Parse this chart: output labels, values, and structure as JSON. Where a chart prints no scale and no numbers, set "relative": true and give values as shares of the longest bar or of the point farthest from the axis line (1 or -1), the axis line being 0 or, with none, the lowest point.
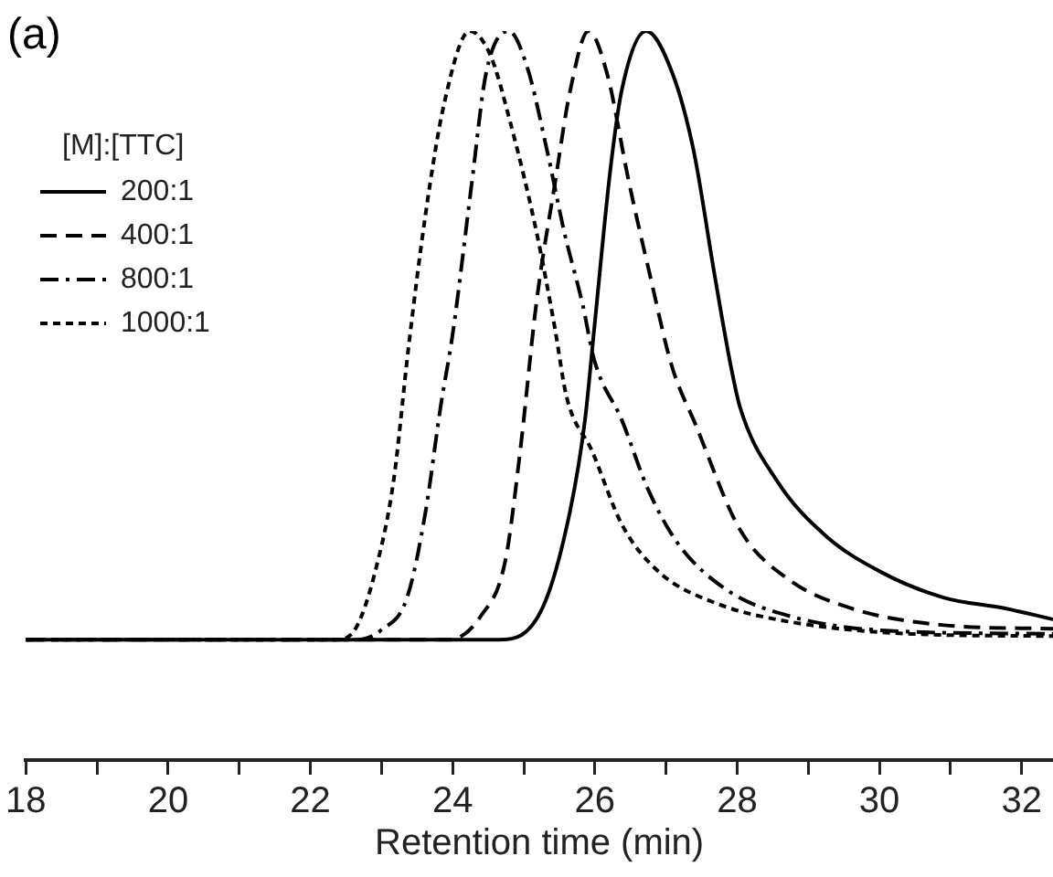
{
  "chart_data": {
    "type": "line",
    "relative": true,
    "xlabel": "Retention time (min)",
    "legend_title": "[M]:[TTC]",
    "legend": "top left",
    "grid": false,
    "marker": "none",
    "annotations": [
      "(a)"
    ],
    "xlim": [
      18,
      32.44
    ],
    "xticks": [
      18,
      {
        "value": 19,
        "label": null
      },
      20,
      {
        "value": 21,
        "label": null
      },
      22,
      {
        "value": 23,
        "label": null
      },
      24,
      {
        "value": 25,
        "label": null
      },
      26,
      {
        "value": 27,
        "label": null
      },
      28,
      {
        "value": 29,
        "label": null
      },
      30,
      {
        "value": 31,
        "label": null
      },
      32
    ],
    "series": [
      {
        "name": "200:1",
        "color": "#000000",
        "line_style": "solid",
        "x": [
          18,
          20,
          22,
          24,
          24.66,
          25.26,
          25.65,
          25.86,
          25.99,
          26.22,
          26.38,
          26.72,
          27.09,
          27.39,
          27.68,
          27.91,
          28.04,
          28.56,
          29.24,
          30.02,
          30.9,
          31.77,
          32.44
        ],
        "values": [
          0.165,
          0.165,
          0.165,
          0.165,
          0.165,
          0.208,
          0.341,
          0.466,
          0.591,
          0.812,
          0.92,
          1,
          0.942,
          0.835,
          0.667,
          0.541,
          0.484,
          0.383,
          0.308,
          0.258,
          0.223,
          0.208,
          0.193
        ]
      },
      {
        "name": "400:1",
        "color": "#000000",
        "line_style": "dashed",
        "x": [
          18,
          20,
          22,
          23.95,
          24.4,
          24.74,
          24.95,
          25.18,
          25.44,
          25.65,
          25.91,
          26.17,
          26.48,
          26.77,
          27.08,
          27.42,
          28.04,
          28.72,
          29.61,
          30.91,
          32.44
        ],
        "values": [
          0.165,
          0.165,
          0.165,
          0.165,
          0.198,
          0.273,
          0.424,
          0.629,
          0.792,
          0.917,
          1,
          0.942,
          0.792,
          0.667,
          0.541,
          0.459,
          0.316,
          0.248,
          0.208,
          0.185,
          0.18
        ]
      },
      {
        "name": "800:1",
        "color": "#000000",
        "line_style": "dashdot",
        "x": [
          18,
          20,
          22.65,
          22.99,
          23.36,
          23.62,
          23.83,
          24,
          24.27,
          24.47,
          24.79,
          25.05,
          25.33,
          25.57,
          25.83,
          25.99,
          26.38,
          26.74,
          27.16,
          27.86,
          28.72,
          30.02,
          32.44
        ],
        "values": [
          0.165,
          0.165,
          0.165,
          0.178,
          0.223,
          0.341,
          0.484,
          0.584,
          0.792,
          0.942,
          1,
          0.95,
          0.835,
          0.724,
          0.624,
          0.549,
          0.466,
          0.373,
          0.298,
          0.233,
          0.198,
          0.178,
          0.173
        ]
      },
      {
        "name": "1000:1",
        "color": "#000000",
        "line_style": "dotted",
        "x": [
          18,
          20,
          22.39,
          22.65,
          22.91,
          23.17,
          23.38,
          23.62,
          23.88,
          24.24,
          24.53,
          24.81,
          25.18,
          25.44,
          25.6,
          25.96,
          26.38,
          26.9,
          27.68,
          28.72,
          30.47,
          32.44
        ],
        "values": [
          0.165,
          0.165,
          0.165,
          0.183,
          0.258,
          0.383,
          0.566,
          0.749,
          0.9,
          1,
          0.967,
          0.875,
          0.724,
          0.591,
          0.499,
          0.424,
          0.323,
          0.258,
          0.216,
          0.19,
          0.173,
          0.17
        ]
      }
    ]
  }
}
